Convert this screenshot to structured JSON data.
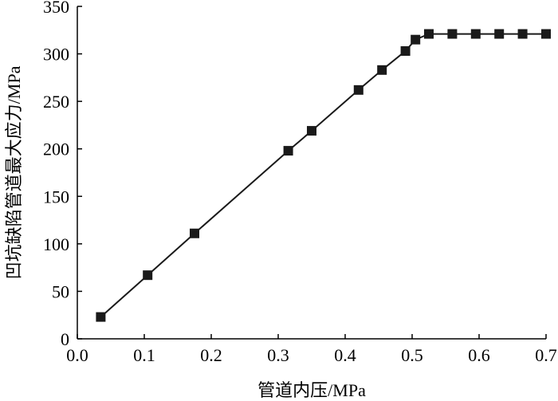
{
  "chart_data": {
    "type": "line",
    "xlabel": "管道内压/MPa",
    "ylabel": "凹坑缺陷管道最大应力/MPa",
    "xlim": [
      0.0,
      0.7
    ],
    "ylim": [
      0,
      350
    ],
    "x_ticks": [
      "0.0",
      "0.1",
      "0.2",
      "0.3",
      "0.4",
      "0.5",
      "0.6",
      "0.7"
    ],
    "y_ticks": [
      "0",
      "50",
      "100",
      "150",
      "200",
      "250",
      "300",
      "350"
    ],
    "grid": false,
    "series": [
      {
        "marker": "square",
        "color": "#1a1a1a",
        "x": [
          0.035,
          0.105,
          0.175,
          0.315,
          0.35,
          0.42,
          0.455,
          0.49,
          0.505,
          0.525,
          0.56,
          0.595,
          0.63,
          0.665,
          0.7
        ],
        "y": [
          23,
          67,
          111,
          198,
          219,
          262,
          283,
          303,
          315,
          321,
          321,
          321,
          321,
          321,
          321
        ]
      }
    ]
  }
}
